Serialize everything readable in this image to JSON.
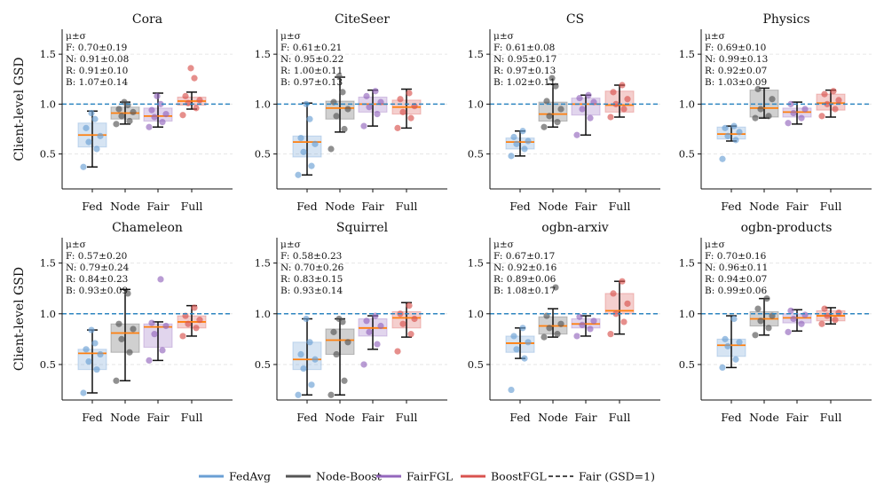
{
  "chart_data": {
    "type": "box",
    "ylabel": "Client-level GSD",
    "ylim": [
      0.15,
      1.75
    ],
    "yticks": [
      0.5,
      1.0,
      1.5
    ],
    "ytick_labels": [
      "0.5",
      "1.0",
      "1.5"
    ],
    "categories": [
      "Fed",
      "Node",
      "Fair",
      "Full"
    ],
    "reference_line": 1.0,
    "stats_header": "μ±σ",
    "colors": {
      "FedAvg": "#6a9fd4",
      "Node-Boost": "#555555",
      "FairFGL": "#9467bd",
      "BoostFGL": "#d9534f",
      "median": "#ff7f0e",
      "reference": "#2e86c1"
    },
    "legend": [
      "FedAvg",
      "Node-Boost",
      "FairFGL",
      "BoostFGL",
      "Fair (GSD=1)"
    ],
    "panels": [
      {
        "title": "Cora",
        "stats": [
          "F: 0.70±0.19",
          "N: 0.91±0.08",
          "R: 0.91±0.10",
          "B: 1.07±0.14"
        ],
        "boxes": [
          {
            "q1": 0.57,
            "median": 0.69,
            "q3": 0.81,
            "wlo": 0.37,
            "whi": 0.93,
            "points": [
              0.37,
              0.55,
              0.62,
              0.68,
              0.76,
              0.85,
              0.91
            ]
          },
          {
            "q1": 0.85,
            "median": 0.91,
            "q3": 0.97,
            "wlo": 0.8,
            "whi": 1.02,
            "points": [
              0.8,
              0.83,
              0.88,
              0.92,
              0.95,
              0.99,
              1.02
            ]
          },
          {
            "q1": 0.83,
            "median": 0.88,
            "q3": 0.96,
            "wlo": 0.77,
            "whi": 1.11,
            "points": [
              0.77,
              0.82,
              0.87,
              0.9,
              0.94,
              1.0,
              1.08
            ]
          },
          {
            "q1": 0.99,
            "median": 1.03,
            "q3": 1.07,
            "wlo": 0.95,
            "whi": 1.12,
            "points": [
              0.89,
              0.96,
              1.01,
              1.04,
              1.08,
              1.26,
              1.36
            ]
          }
        ]
      },
      {
        "title": "CiteSeer",
        "stats": [
          "F: 0.61±0.21",
          "N: 0.95±0.22",
          "R: 1.00±0.11",
          "B: 0.97±0.13"
        ],
        "boxes": [
          {
            "q1": 0.47,
            "median": 0.62,
            "q3": 0.68,
            "wlo": 0.29,
            "whi": 1.01,
            "points": [
              0.29,
              0.38,
              0.52,
              0.6,
              0.66,
              0.85,
              1.0
            ]
          },
          {
            "q1": 0.85,
            "median": 0.96,
            "q3": 1.03,
            "wlo": 0.72,
            "whi": 1.27,
            "points": [
              0.55,
              0.75,
              0.88,
              0.95,
              1.02,
              1.12,
              1.28
            ]
          },
          {
            "q1": 0.92,
            "median": 1.0,
            "q3": 1.07,
            "wlo": 0.78,
            "whi": 1.14,
            "points": [
              0.78,
              0.9,
              0.97,
              1.02,
              1.08,
              1.13
            ]
          },
          {
            "q1": 0.9,
            "median": 0.97,
            "q3": 1.04,
            "wlo": 0.76,
            "whi": 1.15,
            "points": [
              0.76,
              0.86,
              0.92,
              0.98,
              1.05,
              1.11
            ]
          }
        ]
      },
      {
        "title": "CS",
        "stats": [
          "F: 0.61±0.08",
          "N: 0.95±0.17",
          "R: 0.97±0.13",
          "B: 1.02±0.11"
        ],
        "boxes": [
          {
            "q1": 0.55,
            "median": 0.62,
            "q3": 0.66,
            "wlo": 0.48,
            "whi": 0.73,
            "points": [
              0.48,
              0.55,
              0.6,
              0.63,
              0.67,
              0.73
            ]
          },
          {
            "q1": 0.83,
            "median": 0.9,
            "q3": 1.02,
            "wlo": 0.77,
            "whi": 1.2,
            "points": [
              0.77,
              0.82,
              0.88,
              0.95,
              1.03,
              1.18,
              1.26
            ]
          },
          {
            "q1": 0.89,
            "median": 1.0,
            "q3": 1.06,
            "wlo": 0.69,
            "whi": 1.09,
            "points": [
              0.69,
              0.86,
              0.95,
              1.02,
              1.06,
              1.09
            ]
          },
          {
            "q1": 0.92,
            "median": 0.99,
            "q3": 1.13,
            "wlo": 0.87,
            "whi": 1.19,
            "points": [
              0.87,
              0.95,
              1.0,
              1.05,
              1.12,
              1.19
            ]
          }
        ]
      },
      {
        "title": "Physics",
        "stats": [
          "F: 0.69±0.10",
          "N: 0.99±0.13",
          "R: 0.92±0.07",
          "B: 1.03±0.09"
        ],
        "boxes": [
          {
            "q1": 0.65,
            "median": 0.7,
            "q3": 0.77,
            "wlo": 0.63,
            "whi": 0.78,
            "points": [
              0.45,
              0.64,
              0.68,
              0.72,
              0.76,
              0.78
            ]
          },
          {
            "q1": 0.87,
            "median": 0.96,
            "q3": 1.14,
            "wlo": 0.86,
            "whi": 1.16,
            "points": [
              0.86,
              0.88,
              0.95,
              1.05,
              1.15
            ]
          },
          {
            "q1": 0.87,
            "median": 0.92,
            "q3": 0.96,
            "wlo": 0.8,
            "whi": 1.02,
            "points": [
              0.81,
              0.86,
              0.91,
              0.95,
              1.0
            ]
          },
          {
            "q1": 0.94,
            "median": 1.01,
            "q3": 1.1,
            "wlo": 0.87,
            "whi": 1.14,
            "points": [
              0.88,
              0.95,
              1.0,
              1.04,
              1.1,
              1.13
            ]
          }
        ]
      },
      {
        "title": "Chameleon",
        "stats": [
          "F: 0.57±0.20",
          "N: 0.79±0.24",
          "R: 0.84±0.23",
          "B: 0.93±0.09"
        ],
        "boxes": [
          {
            "q1": 0.45,
            "median": 0.61,
            "q3": 0.65,
            "wlo": 0.22,
            "whi": 0.84,
            "points": [
              0.22,
              0.45,
              0.53,
              0.6,
              0.65,
              0.71,
              0.84
            ]
          },
          {
            "q1": 0.62,
            "median": 0.81,
            "q3": 0.9,
            "wlo": 0.34,
            "whi": 1.24,
            "points": [
              0.34,
              0.62,
              0.75,
              0.85,
              0.9,
              1.2
            ]
          },
          {
            "q1": 0.67,
            "median": 0.87,
            "q3": 0.9,
            "wlo": 0.54,
            "whi": 0.92,
            "points": [
              0.54,
              0.64,
              0.8,
              0.88,
              0.91,
              1.34
            ]
          },
          {
            "q1": 0.86,
            "median": 0.92,
            "q3": 0.98,
            "wlo": 0.78,
            "whi": 1.08,
            "points": [
              0.78,
              0.86,
              0.9,
              0.94,
              0.98,
              1.06
            ]
          }
        ]
      },
      {
        "title": "Squirrel",
        "stats": [
          "F: 0.58±0.23",
          "N: 0.70±0.26",
          "R: 0.83±0.15",
          "B: 0.93±0.14"
        ],
        "boxes": [
          {
            "q1": 0.45,
            "median": 0.55,
            "q3": 0.72,
            "wlo": 0.2,
            "whi": 0.95,
            "points": [
              0.2,
              0.3,
              0.46,
              0.55,
              0.6,
              0.72,
              0.95
            ]
          },
          {
            "q1": 0.6,
            "median": 0.74,
            "q3": 0.85,
            "wlo": 0.2,
            "whi": 0.95,
            "points": [
              0.2,
              0.34,
              0.6,
              0.72,
              0.82,
              0.92,
              0.95
            ]
          },
          {
            "q1": 0.78,
            "median": 0.86,
            "q3": 0.95,
            "wlo": 0.65,
            "whi": 0.98,
            "points": [
              0.5,
              0.7,
              0.82,
              0.88,
              0.93,
              0.98
            ]
          },
          {
            "q1": 0.86,
            "median": 0.96,
            "q3": 1.02,
            "wlo": 0.77,
            "whi": 1.11,
            "points": [
              0.63,
              0.8,
              0.9,
              0.95,
              1.0,
              1.08
            ]
          }
        ]
      },
      {
        "title": "ogbn-arxiv",
        "stats": [
          "F: 0.67±0.17",
          "N: 0.92±0.16",
          "R: 0.89±0.06",
          "B: 1.08±0.17"
        ],
        "boxes": [
          {
            "q1": 0.62,
            "median": 0.71,
            "q3": 0.78,
            "wlo": 0.56,
            "whi": 0.86,
            "points": [
              0.25,
              0.56,
              0.65,
              0.72,
              0.78,
              0.86
            ]
          },
          {
            "q1": 0.8,
            "median": 0.88,
            "q3": 0.97,
            "wlo": 0.77,
            "whi": 1.05,
            "points": [
              0.77,
              0.8,
              0.86,
              0.9,
              0.98,
              1.26
            ]
          },
          {
            "q1": 0.86,
            "median": 0.9,
            "q3": 0.95,
            "wlo": 0.78,
            "whi": 0.98,
            "points": [
              0.78,
              0.85,
              0.89,
              0.93,
              0.97
            ]
          },
          {
            "q1": 1.0,
            "median": 1.03,
            "q3": 1.2,
            "wlo": 0.8,
            "whi": 1.32,
            "points": [
              0.8,
              0.92,
              1.0,
              1.1,
              1.2,
              1.32
            ]
          }
        ]
      },
      {
        "title": "ogbn-products",
        "stats": [
          "F: 0.70±0.16",
          "N: 0.96±0.11",
          "R: 0.94±0.07",
          "B: 0.99±0.06"
        ],
        "boxes": [
          {
            "q1": 0.58,
            "median": 0.69,
            "q3": 0.75,
            "wlo": 0.47,
            "whi": 0.98,
            "points": [
              0.47,
              0.55,
              0.68,
              0.72,
              0.75,
              0.95
            ]
          },
          {
            "q1": 0.88,
            "median": 0.95,
            "q3": 1.02,
            "wlo": 0.79,
            "whi": 1.15,
            "points": [
              0.79,
              0.86,
              0.93,
              0.98,
              1.05,
              1.15
            ]
          },
          {
            "q1": 0.91,
            "median": 0.96,
            "q3": 1.0,
            "wlo": 0.83,
            "whi": 1.04,
            "points": [
              0.82,
              0.9,
              0.95,
              0.99,
              1.03
            ]
          },
          {
            "q1": 0.93,
            "median": 0.98,
            "q3": 1.03,
            "wlo": 0.9,
            "whi": 1.06,
            "points": [
              0.9,
              0.94,
              0.98,
              1.01,
              1.05
            ]
          }
        ]
      }
    ]
  }
}
